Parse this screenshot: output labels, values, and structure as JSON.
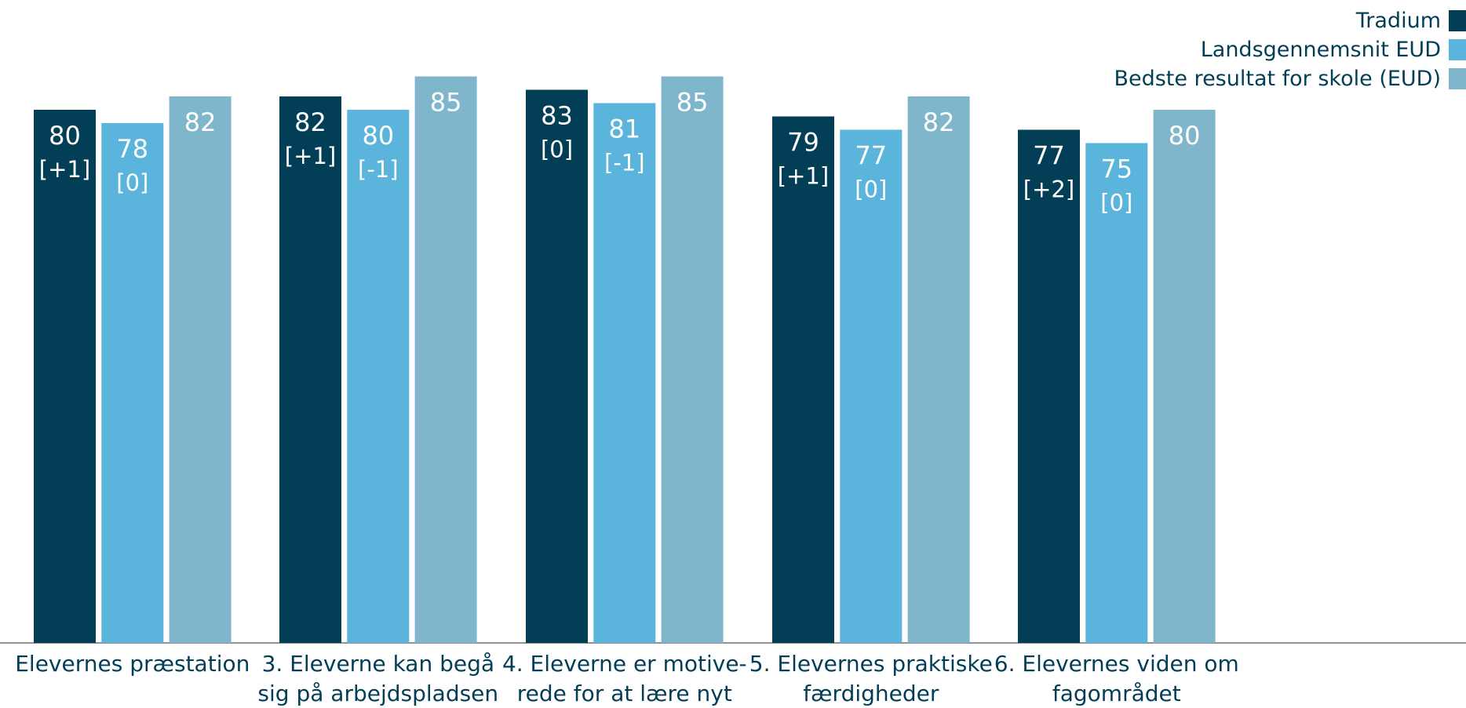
{
  "chart_data": {
    "type": "bar",
    "title": "",
    "xlabel": "",
    "ylabel": "",
    "ylim": [
      0,
      100
    ],
    "grid": false,
    "legend_position": "top-right",
    "categories": [
      [
        "Elevernes præstation"
      ],
      [
        "3. Eleverne kan begå",
        "sig på arbejdspladsen"
      ],
      [
        "4. Eleverne er motive-",
        "rede for at lære nyt"
      ],
      [
        "5. Elevernes praktiske",
        "færdigheder"
      ],
      [
        "6. Elevernes viden om",
        "fagområdet"
      ]
    ],
    "series": [
      {
        "name": "Tradium",
        "color": "#023e56",
        "values": [
          80,
          82,
          83,
          79,
          77
        ],
        "changes": [
          "[+1]",
          "[+1]",
          "[0]",
          "[+1]",
          "[+2]"
        ]
      },
      {
        "name": "Landsgennemsnit EUD",
        "color": "#5bb4db",
        "values": [
          78,
          80,
          81,
          77,
          75
        ],
        "changes": [
          "[0]",
          "[-1]",
          "[-1]",
          "[0]",
          "[0]"
        ]
      },
      {
        "name": "Bedste resultat for skole (EUD)",
        "color": "#7fb6cb",
        "values": [
          82,
          85,
          85,
          82,
          80
        ]
      }
    ],
    "separator_after_category": 0
  }
}
